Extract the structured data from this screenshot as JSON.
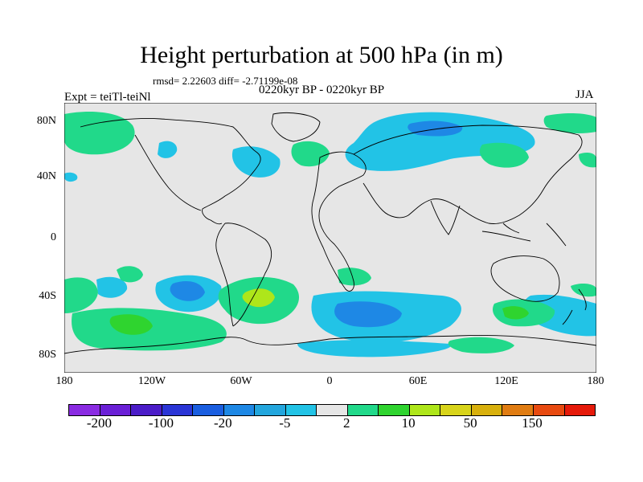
{
  "title": "Height perturbation at 500 hPa (in m)",
  "stats": "rmsd= 2.22603 diff= -2.71199e-08",
  "experiment": "Expt = teiTl-teiNl",
  "period": "0220kyr BP - 0220kyr BP",
  "season": "JJA",
  "lat_labels": [
    "80N",
    "40N",
    "0",
    "40S",
    "80S"
  ],
  "lon_labels": [
    "180",
    "120W",
    "60W",
    "0",
    "60E",
    "120E",
    "180"
  ],
  "colorbar": {
    "colors": [
      "#8a2be2",
      "#6a1fd6",
      "#4b1cc8",
      "#2a35d6",
      "#1a5ee0",
      "#1e88e5",
      "#23a6dd",
      "#22c3e6",
      "#e6e6e6",
      "#21d98a",
      "#2fd42f",
      "#aee61a",
      "#d8d41a",
      "#d8b00c",
      "#e07c12",
      "#e84a10",
      "#e61a0a"
    ],
    "labels": [
      "-200",
      "-100",
      "-20",
      "-5",
      "2",
      "10",
      "50",
      "150"
    ]
  }
}
